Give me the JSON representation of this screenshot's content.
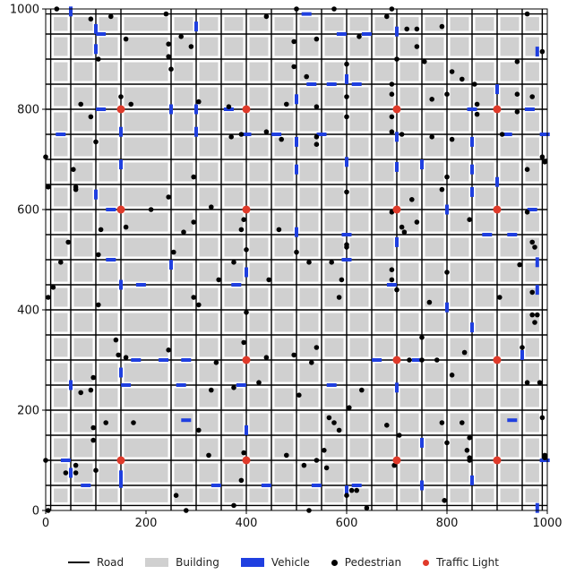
{
  "chart_data": {
    "type": "scatter",
    "xlim": [
      0,
      1000
    ],
    "ylim": [
      0,
      1000
    ],
    "x_ticks": [
      0,
      200,
      400,
      600,
      800,
      1000
    ],
    "y_ticks": [
      0,
      200,
      400,
      600,
      800,
      1000
    ],
    "grid": false,
    "legend_placement": "bottom-center",
    "legend": [
      {
        "label": "Road",
        "kind": "line",
        "color": "#000000"
      },
      {
        "label": "Building",
        "kind": "rect",
        "color": "#d0d0d0"
      },
      {
        "label": "Vehicle",
        "kind": "rect",
        "color": "#1f3fe0"
      },
      {
        "label": "Pedestrian",
        "kind": "dot",
        "color": "#000000"
      },
      {
        "label": "Traffic Light",
        "kind": "dot",
        "color": "#e03a2a"
      }
    ],
    "roads_vertical_x": [
      10,
      50,
      100,
      150,
      250,
      300,
      350,
      400,
      450,
      500,
      550,
      600,
      650,
      700,
      750,
      800,
      850,
      900,
      950,
      990
    ],
    "roads_horizontal_y": [
      10,
      50,
      100,
      150,
      200,
      250,
      300,
      350,
      400,
      450,
      500,
      550,
      600,
      650,
      700,
      750,
      800,
      850,
      900,
      950,
      990
    ],
    "traffic_lights": [
      [
        150,
        800
      ],
      [
        400,
        800
      ],
      [
        700,
        800
      ],
      [
        900,
        800
      ],
      [
        150,
        600
      ],
      [
        400,
        600
      ],
      [
        700,
        600
      ],
      [
        900,
        600
      ],
      [
        400,
        300
      ],
      [
        700,
        300
      ],
      [
        900,
        300
      ],
      [
        150,
        100
      ],
      [
        400,
        100
      ],
      [
        700,
        100
      ],
      [
        900,
        100
      ]
    ],
    "vehicles": [
      {
        "x": 50,
        "y": 995,
        "o": "v"
      },
      {
        "x": 100,
        "y": 960,
        "o": "v"
      },
      {
        "x": 110,
        "y": 950,
        "o": "h"
      },
      {
        "x": 100,
        "y": 920,
        "o": "v"
      },
      {
        "x": 300,
        "y": 965,
        "o": "v"
      },
      {
        "x": 520,
        "y": 990,
        "o": "h"
      },
      {
        "x": 590,
        "y": 950,
        "o": "h"
      },
      {
        "x": 640,
        "y": 950,
        "o": "h"
      },
      {
        "x": 700,
        "y": 955,
        "o": "v"
      },
      {
        "x": 980,
        "y": 915,
        "o": "v"
      },
      {
        "x": 500,
        "y": 820,
        "o": "v"
      },
      {
        "x": 530,
        "y": 850,
        "o": "h"
      },
      {
        "x": 570,
        "y": 850,
        "o": "h"
      },
      {
        "x": 600,
        "y": 860,
        "o": "v"
      },
      {
        "x": 620,
        "y": 850,
        "o": "h"
      },
      {
        "x": 900,
        "y": 840,
        "o": "v"
      },
      {
        "x": 110,
        "y": 800,
        "o": "h"
      },
      {
        "x": 250,
        "y": 800,
        "o": "v"
      },
      {
        "x": 300,
        "y": 800,
        "o": "v"
      },
      {
        "x": 365,
        "y": 800,
        "o": "h"
      },
      {
        "x": 850,
        "y": 800,
        "o": "h"
      },
      {
        "x": 965,
        "y": 800,
        "o": "h"
      },
      {
        "x": 30,
        "y": 750,
        "o": "h"
      },
      {
        "x": 150,
        "y": 755,
        "o": "v"
      },
      {
        "x": 300,
        "y": 755,
        "o": "v"
      },
      {
        "x": 400,
        "y": 750,
        "o": "h"
      },
      {
        "x": 460,
        "y": 750,
        "o": "h"
      },
      {
        "x": 500,
        "y": 735,
        "o": "v"
      },
      {
        "x": 550,
        "y": 750,
        "o": "h"
      },
      {
        "x": 700,
        "y": 745,
        "o": "v"
      },
      {
        "x": 850,
        "y": 735,
        "o": "v"
      },
      {
        "x": 920,
        "y": 750,
        "o": "h"
      },
      {
        "x": 995,
        "y": 750,
        "o": "h"
      },
      {
        "x": 150,
        "y": 690,
        "o": "v"
      },
      {
        "x": 500,
        "y": 680,
        "o": "v"
      },
      {
        "x": 600,
        "y": 695,
        "o": "v"
      },
      {
        "x": 700,
        "y": 685,
        "o": "v"
      },
      {
        "x": 750,
        "y": 690,
        "o": "v"
      },
      {
        "x": 850,
        "y": 680,
        "o": "v"
      },
      {
        "x": 900,
        "y": 655,
        "o": "v"
      },
      {
        "x": 100,
        "y": 630,
        "o": "v"
      },
      {
        "x": 850,
        "y": 635,
        "o": "v"
      },
      {
        "x": 130,
        "y": 600,
        "o": "h"
      },
      {
        "x": 800,
        "y": 600,
        "o": "v"
      },
      {
        "x": 970,
        "y": 600,
        "o": "h"
      },
      {
        "x": 500,
        "y": 555,
        "o": "v"
      },
      {
        "x": 600,
        "y": 550,
        "o": "h"
      },
      {
        "x": 700,
        "y": 535,
        "o": "v"
      },
      {
        "x": 880,
        "y": 550,
        "o": "h"
      },
      {
        "x": 930,
        "y": 550,
        "o": "h"
      },
      {
        "x": 130,
        "y": 500,
        "o": "h"
      },
      {
        "x": 250,
        "y": 490,
        "o": "v"
      },
      {
        "x": 600,
        "y": 500,
        "o": "h"
      },
      {
        "x": 980,
        "y": 495,
        "o": "v"
      },
      {
        "x": 150,
        "y": 450,
        "o": "v"
      },
      {
        "x": 190,
        "y": 450,
        "o": "h"
      },
      {
        "x": 380,
        "y": 450,
        "o": "h"
      },
      {
        "x": 400,
        "y": 475,
        "o": "v"
      },
      {
        "x": 690,
        "y": 450,
        "o": "h"
      },
      {
        "x": 980,
        "y": 440,
        "o": "v"
      },
      {
        "x": 800,
        "y": 405,
        "o": "v"
      },
      {
        "x": 850,
        "y": 365,
        "o": "v"
      },
      {
        "x": 180,
        "y": 300,
        "o": "h"
      },
      {
        "x": 235,
        "y": 300,
        "o": "h"
      },
      {
        "x": 280,
        "y": 300,
        "o": "h"
      },
      {
        "x": 660,
        "y": 300,
        "o": "h"
      },
      {
        "x": 740,
        "y": 300,
        "o": "h"
      },
      {
        "x": 950,
        "y": 310,
        "o": "v"
      },
      {
        "x": 150,
        "y": 275,
        "o": "v"
      },
      {
        "x": 50,
        "y": 250,
        "o": "v"
      },
      {
        "x": 160,
        "y": 250,
        "o": "h"
      },
      {
        "x": 270,
        "y": 250,
        "o": "h"
      },
      {
        "x": 390,
        "y": 250,
        "o": "h"
      },
      {
        "x": 570,
        "y": 250,
        "o": "h"
      },
      {
        "x": 700,
        "y": 245,
        "o": "v"
      },
      {
        "x": 280,
        "y": 180,
        "o": "h"
      },
      {
        "x": 930,
        "y": 180,
        "o": "h"
      },
      {
        "x": 400,
        "y": 160,
        "o": "v"
      },
      {
        "x": 750,
        "y": 135,
        "o": "v"
      },
      {
        "x": 40,
        "y": 100,
        "o": "h"
      },
      {
        "x": 50,
        "y": 75,
        "o": "v"
      },
      {
        "x": 150,
        "y": 70,
        "o": "v"
      },
      {
        "x": 995,
        "y": 100,
        "o": "h"
      },
      {
        "x": 80,
        "y": 50,
        "o": "h"
      },
      {
        "x": 150,
        "y": 55,
        "o": "v"
      },
      {
        "x": 340,
        "y": 50,
        "o": "h"
      },
      {
        "x": 440,
        "y": 50,
        "o": "h"
      },
      {
        "x": 540,
        "y": 50,
        "o": "h"
      },
      {
        "x": 620,
        "y": 50,
        "o": "h"
      },
      {
        "x": 750,
        "y": 50,
        "o": "v"
      },
      {
        "x": 850,
        "y": 60,
        "o": "v"
      },
      {
        "x": 600,
        "y": 40,
        "o": "v"
      },
      {
        "x": 980,
        "y": 5,
        "o": "v"
      }
    ],
    "pedestrians": [
      [
        22,
        1000
      ],
      [
        90,
        980
      ],
      [
        130,
        985
      ],
      [
        160,
        940
      ],
      [
        240,
        990
      ],
      [
        245,
        930
      ],
      [
        270,
        945
      ],
      [
        290,
        925
      ],
      [
        440,
        985
      ],
      [
        495,
        935
      ],
      [
        500,
        1000
      ],
      [
        540,
        940
      ],
      [
        575,
        1000
      ],
      [
        625,
        945
      ],
      [
        680,
        985
      ],
      [
        690,
        1000
      ],
      [
        720,
        960
      ],
      [
        740,
        960
      ],
      [
        790,
        965
      ],
      [
        960,
        990
      ],
      [
        105,
        900
      ],
      [
        245,
        905
      ],
      [
        250,
        880
      ],
      [
        495,
        885
      ],
      [
        520,
        865
      ],
      [
        600,
        890
      ],
      [
        690,
        850
      ],
      [
        700,
        900
      ],
      [
        740,
        925
      ],
      [
        755,
        895
      ],
      [
        810,
        875
      ],
      [
        830,
        860
      ],
      [
        855,
        850
      ],
      [
        940,
        895
      ],
      [
        940,
        830
      ],
      [
        990,
        915
      ],
      [
        70,
        810
      ],
      [
        90,
        785
      ],
      [
        150,
        825
      ],
      [
        170,
        810
      ],
      [
        305,
        815
      ],
      [
        365,
        805
      ],
      [
        480,
        810
      ],
      [
        540,
        805
      ],
      [
        600,
        825
      ],
      [
        600,
        785
      ],
      [
        690,
        785
      ],
      [
        690,
        830
      ],
      [
        770,
        820
      ],
      [
        800,
        830
      ],
      [
        860,
        810
      ],
      [
        860,
        790
      ],
      [
        970,
        825
      ],
      [
        940,
        795
      ],
      [
        0,
        705
      ],
      [
        5,
        645
      ],
      [
        55,
        680
      ],
      [
        60,
        645
      ],
      [
        60,
        640
      ],
      [
        100,
        735
      ],
      [
        245,
        625
      ],
      [
        295,
        665
      ],
      [
        370,
        745
      ],
      [
        390,
        750
      ],
      [
        440,
        755
      ],
      [
        470,
        740
      ],
      [
        540,
        730
      ],
      [
        540,
        745
      ],
      [
        600,
        635
      ],
      [
        690,
        755
      ],
      [
        710,
        750
      ],
      [
        730,
        620
      ],
      [
        770,
        745
      ],
      [
        790,
        640
      ],
      [
        800,
        665
      ],
      [
        810,
        740
      ],
      [
        910,
        750
      ],
      [
        960,
        680
      ],
      [
        990,
        705
      ],
      [
        995,
        695
      ],
      [
        110,
        560
      ],
      [
        160,
        565
      ],
      [
        210,
        600
      ],
      [
        275,
        555
      ],
      [
        295,
        575
      ],
      [
        330,
        605
      ],
      [
        390,
        560
      ],
      [
        395,
        580
      ],
      [
        465,
        560
      ],
      [
        600,
        525
      ],
      [
        600,
        530
      ],
      [
        690,
        595
      ],
      [
        710,
        565
      ],
      [
        715,
        555
      ],
      [
        740,
        575
      ],
      [
        845,
        580
      ],
      [
        960,
        595
      ],
      [
        970,
        535
      ],
      [
        975,
        525
      ],
      [
        45,
        535
      ],
      [
        30,
        495
      ],
      [
        105,
        510
      ],
      [
        255,
        515
      ],
      [
        345,
        460
      ],
      [
        375,
        495
      ],
      [
        400,
        520
      ],
      [
        445,
        460
      ],
      [
        500,
        515
      ],
      [
        525,
        495
      ],
      [
        570,
        495
      ],
      [
        590,
        460
      ],
      [
        690,
        480
      ],
      [
        690,
        460
      ],
      [
        700,
        440
      ],
      [
        800,
        475
      ],
      [
        945,
        490
      ],
      [
        5,
        425
      ],
      [
        15,
        445
      ],
      [
        105,
        410
      ],
      [
        140,
        340
      ],
      [
        145,
        310
      ],
      [
        160,
        305
      ],
      [
        245,
        320
      ],
      [
        295,
        425
      ],
      [
        305,
        410
      ],
      [
        400,
        395
      ],
      [
        395,
        335
      ],
      [
        540,
        325
      ],
      [
        585,
        425
      ],
      [
        750,
        345
      ],
      [
        765,
        415
      ],
      [
        835,
        315
      ],
      [
        905,
        425
      ],
      [
        950,
        325
      ],
      [
        970,
        435
      ],
      [
        970,
        390
      ],
      [
        975,
        375
      ],
      [
        980,
        390
      ],
      [
        0,
        100
      ],
      [
        5,
        0
      ],
      [
        40,
        75
      ],
      [
        60,
        90
      ],
      [
        60,
        75
      ],
      [
        70,
        235
      ],
      [
        90,
        240
      ],
      [
        95,
        265
      ],
      [
        95,
        165
      ],
      [
        95,
        140
      ],
      [
        100,
        80
      ],
      [
        120,
        175
      ],
      [
        175,
        175
      ],
      [
        305,
        160
      ],
      [
        325,
        110
      ],
      [
        330,
        240
      ],
      [
        340,
        295
      ],
      [
        375,
        10
      ],
      [
        375,
        245
      ],
      [
        390,
        60
      ],
      [
        395,
        115
      ],
      [
        425,
        255
      ],
      [
        440,
        305
      ],
      [
        480,
        110
      ],
      [
        495,
        310
      ],
      [
        505,
        230
      ],
      [
        515,
        90
      ],
      [
        530,
        295
      ],
      [
        540,
        100
      ],
      [
        555,
        120
      ],
      [
        560,
        85
      ],
      [
        565,
        185
      ],
      [
        575,
        175
      ],
      [
        585,
        160
      ],
      [
        605,
        205
      ],
      [
        610,
        40
      ],
      [
        630,
        240
      ],
      [
        640,
        5
      ],
      [
        680,
        170
      ],
      [
        695,
        90
      ],
      [
        705,
        150
      ],
      [
        725,
        300
      ],
      [
        750,
        300
      ],
      [
        780,
        300
      ],
      [
        790,
        175
      ],
      [
        795,
        20
      ],
      [
        800,
        135
      ],
      [
        810,
        270
      ],
      [
        830,
        175
      ],
      [
        840,
        120
      ],
      [
        845,
        145
      ],
      [
        845,
        105
      ],
      [
        845,
        100
      ],
      [
        960,
        255
      ],
      [
        985,
        255
      ],
      [
        990,
        185
      ],
      [
        995,
        110
      ],
      [
        995,
        105
      ],
      [
        260,
        30
      ],
      [
        280,
        0
      ],
      [
        525,
        0
      ],
      [
        600,
        30
      ],
      [
        620,
        40
      ]
    ]
  }
}
